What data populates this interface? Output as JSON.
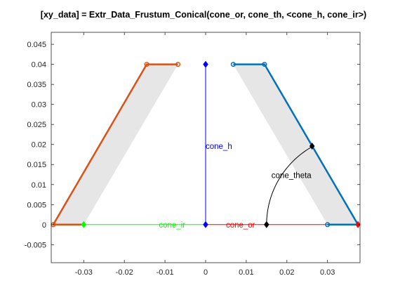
{
  "chart_data": {
    "type": "line",
    "title": "[xy_data] = Extr_Data_Frustum_Conical(cone_or, cone_th, <cone_h, cone_ir>)",
    "xlabel": "",
    "ylabel": "",
    "xlim": [
      -0.038,
      0.038
    ],
    "ylim": [
      -0.0095,
      0.048
    ],
    "x_ticks": [
      -0.03,
      -0.02,
      -0.01,
      0,
      0.01,
      0.02,
      0.03
    ],
    "x_tick_labels": [
      "-0.03",
      "-0.02",
      "-0.01",
      "0",
      "0.01",
      "0.02",
      "0.03"
    ],
    "y_ticks": [
      -0.005,
      0,
      0.005,
      0.01,
      0.015,
      0.02,
      0.025,
      0.03,
      0.035,
      0.04,
      0.045
    ],
    "y_tick_labels": [
      "-0.005",
      "0",
      "0.005",
      "0.01",
      "0.015",
      "0.02",
      "0.025",
      "0.03",
      "0.035",
      "0.04",
      "0.045"
    ],
    "grid": false,
    "legend": "none",
    "fills": [
      {
        "color": "#e6e6e6",
        "points": [
          [
            -0.0375,
            0
          ],
          [
            -0.03,
            0
          ],
          [
            -0.0068,
            0.04
          ],
          [
            -0.0145,
            0.04
          ]
        ]
      },
      {
        "color": "#e6e6e6",
        "points": [
          [
            0.0375,
            0
          ],
          [
            0.03,
            0
          ],
          [
            0.0068,
            0.04
          ],
          [
            0.0145,
            0.04
          ]
        ]
      }
    ],
    "series": [
      {
        "color": "#ff0000",
        "x": [
          0.0,
          0.0375
        ],
        "y": [
          0.0,
          0.0
        ],
        "width": 1
      },
      {
        "color": "#00ff00",
        "x": [
          -0.03,
          0.0
        ],
        "y": [
          0.0,
          0.0
        ],
        "width": 1
      },
      {
        "color": "#0000ff",
        "x": [
          0.0,
          0.0
        ],
        "y": [
          0.0,
          0.04
        ],
        "width": 1
      },
      {
        "color": "#d95319",
        "x": [
          -0.0068,
          -0.0145,
          -0.0375,
          -0.03
        ],
        "y": [
          0.04,
          0.04,
          0.0,
          0.0
        ],
        "width": 2.5
      },
      {
        "color": "#0072bd",
        "x": [
          0.0068,
          0.0145,
          0.0375,
          0.03
        ],
        "y": [
          0.04,
          0.04,
          0.0,
          0.0
        ],
        "width": 2.5
      }
    ],
    "markers": [
      {
        "shape": "circle",
        "color": "#d95319",
        "x": -0.0068,
        "y": 0.04
      },
      {
        "shape": "circle",
        "color": "#d95319",
        "x": -0.0145,
        "y": 0.04
      },
      {
        "shape": "circle",
        "color": "#d95319",
        "x": -0.0375,
        "y": 0.0
      },
      {
        "shape": "circle",
        "color": "#0072bd",
        "x": 0.0068,
        "y": 0.04
      },
      {
        "shape": "circle",
        "color": "#0072bd",
        "x": 0.0145,
        "y": 0.04
      },
      {
        "shape": "circle",
        "color": "#0072bd",
        "x": 0.03,
        "y": 0.0
      },
      {
        "shape": "diamond",
        "color": "#00ff00",
        "x": -0.03,
        "y": 0.0
      },
      {
        "shape": "diamond",
        "color": "#0000ff",
        "x": 0.0,
        "y": 0.0
      },
      {
        "shape": "diamond",
        "color": "#0000ff",
        "x": 0.0,
        "y": 0.04
      },
      {
        "shape": "diamond",
        "color": "#ff0000",
        "x": 0.0375,
        "y": 0.0
      },
      {
        "shape": "diamond",
        "color": "#000000",
        "x": 0.015,
        "y": 0.0
      },
      {
        "shape": "diamond",
        "color": "#000000",
        "x": 0.0262,
        "y": 0.0196
      }
    ],
    "arc": {
      "color": "#000000",
      "center": [
        0.0375,
        0.0
      ],
      "radius": 0.0225,
      "from_deg": 180,
      "to_deg": 119
    },
    "annotations": [
      {
        "text": "cone_h",
        "color": "#0000ff",
        "x": 0.0,
        "y": 0.0196
      },
      {
        "text": "cone_theta",
        "color": "#000000",
        "x": 0.0162,
        "y": 0.0123
      },
      {
        "text": "cone_ir",
        "color": "#00ff00",
        "x": -0.0115,
        "y": 0.0
      },
      {
        "text": "cone_or",
        "color": "#ff0000",
        "x": 0.005,
        "y": 0.0
      }
    ]
  }
}
